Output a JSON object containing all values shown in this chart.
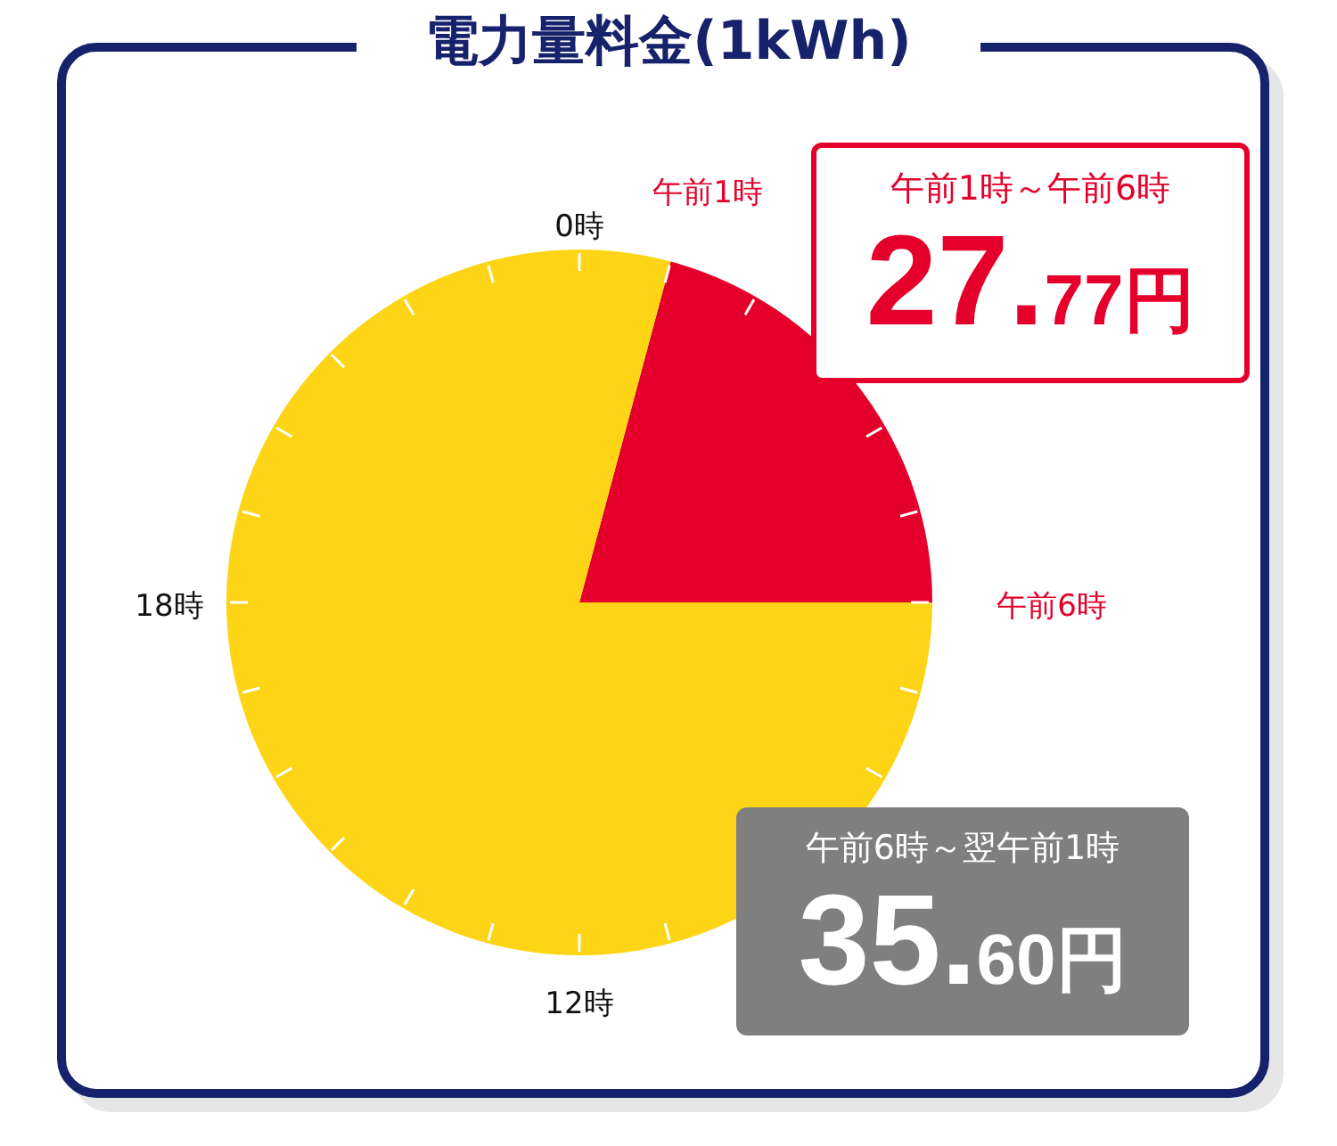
{
  "chart_data": {
    "type": "pie",
    "title": "電力量料金(1kWh)",
    "categories": [
      "午前1時～午前6時",
      "午前6時～翌午前1時"
    ],
    "values": [
      20.83,
      79.17
    ],
    "colors": [
      "#e4002b",
      "#fdd516"
    ],
    "annotations": [
      "0時",
      "午前1時",
      "午前6時",
      "12時",
      "18時",
      "27.77円",
      "35.60円"
    ],
    "legend": false
  }
}
